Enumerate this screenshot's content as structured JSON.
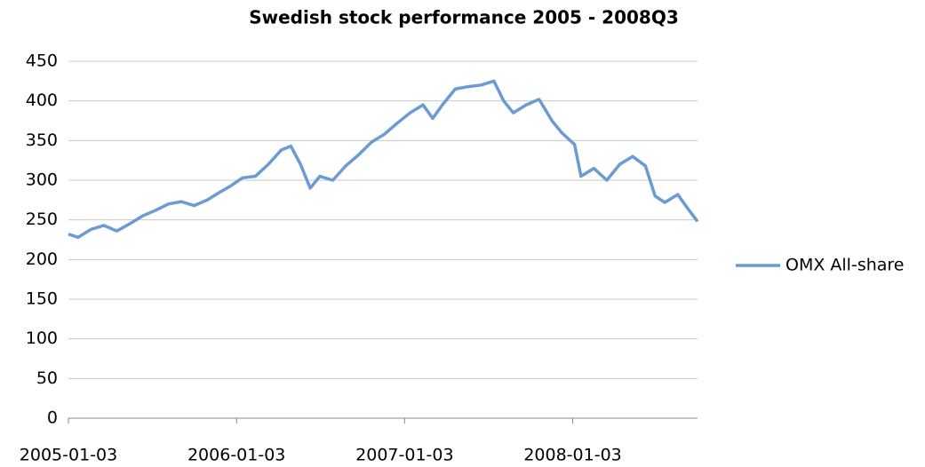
{
  "chart_data": {
    "type": "line",
    "title": "Swedish stock performance 2005 - 2008Q3",
    "x": [
      "2005-01-03",
      "2005-01-24",
      "2005-02-21",
      "2005-03-21",
      "2005-04-18",
      "2005-05-16",
      "2005-06-13",
      "2005-07-11",
      "2005-08-08",
      "2005-09-05",
      "2005-10-03",
      "2005-10-31",
      "2005-11-28",
      "2005-12-19",
      "2006-01-16",
      "2006-02-13",
      "2006-03-13",
      "2006-04-10",
      "2006-05-01",
      "2006-05-22",
      "2006-06-12",
      "2006-07-03",
      "2006-07-31",
      "2006-08-28",
      "2006-09-25",
      "2006-10-23",
      "2006-11-20",
      "2006-12-18",
      "2007-01-15",
      "2007-02-12",
      "2007-03-05",
      "2007-03-26",
      "2007-04-23",
      "2007-05-21",
      "2007-06-18",
      "2007-07-16",
      "2007-08-06",
      "2007-08-27",
      "2007-09-24",
      "2007-10-22",
      "2007-11-19",
      "2007-12-10",
      "2008-01-07",
      "2008-01-21",
      "2008-02-18",
      "2008-03-17",
      "2008-04-14",
      "2008-05-12",
      "2008-06-09",
      "2008-06-30",
      "2008-07-21",
      "2008-08-18",
      "2008-09-08",
      "2008-09-30"
    ],
    "series": [
      {
        "name": "OMX All-share",
        "color": "#6a9bd3",
        "values": [
          232,
          228,
          238,
          243,
          236,
          245,
          255,
          262,
          270,
          273,
          268,
          275,
          285,
          292,
          303,
          305,
          320,
          338,
          343,
          320,
          290,
          305,
          300,
          318,
          332,
          348,
          358,
          372,
          385,
          395,
          378,
          395,
          415,
          418,
          420,
          425,
          400,
          385,
          395,
          402,
          375,
          360,
          345,
          305,
          315,
          300,
          320,
          330,
          318,
          280,
          272,
          282,
          265,
          248
        ]
      }
    ],
    "xlim": [
      "2005-01-03",
      "2008-09-30"
    ],
    "xticks": [
      "2005-01-03",
      "2006-01-03",
      "2007-01-03",
      "2008-01-03"
    ],
    "ylim": [
      0,
      450
    ],
    "yticks": [
      0,
      50,
      100,
      150,
      200,
      250,
      300,
      350,
      400,
      450
    ],
    "grid": true,
    "legend": "right"
  }
}
